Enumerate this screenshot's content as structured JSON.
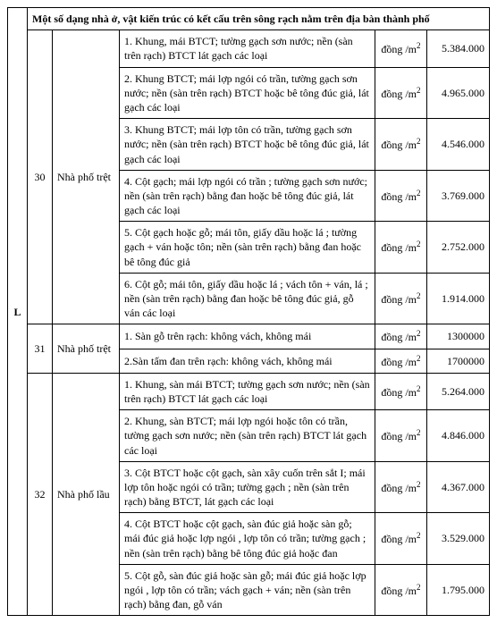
{
  "header": {
    "col_l": "L",
    "title": "Một số dạng nhà ở, vật kiến trúc có kết cấu trên sông rạch nằm trên địa bàn thành phố"
  },
  "groups": [
    {
      "stt": "30",
      "category": "Nhà phố trệt",
      "rows": [
        {
          "desc": "1. Khung, mái BTCT; tường gạch sơn nước; nền (sàn trên rạch) BTCT lát gạch các loại",
          "unit_html": "đồng /m<sup>2</sup>",
          "value": "5.384.000"
        },
        {
          "desc": "2. Khung BTCT; mái lợp ngói có trần, tường gạch sơn nước; nền (sàn trên rạch) BTCT hoặc bê tông đúc giả, lát gạch các loại",
          "unit_html": "đồng /m<sup>2</sup>",
          "value": "4.965.000"
        },
        {
          "desc": "3. Khung BTCT; mái lợp tôn có trần, tường gạch sơn nước; nền (sàn trên rạch) BTCT hoặc bê tông đúc giả, lát gạch các loại",
          "unit_html": "đồng /m<sup>2</sup>",
          "value": "4.546.000"
        },
        {
          "desc": "4. Cột gạch; mái lợp ngói có trần ; tường gạch sơn nước; nền (sàn trên rạch) bằng đan hoặc bê tông đúc giả, lát gạch các loại",
          "unit_html": "đồng /m<sup>2</sup>",
          "value": "3.769.000"
        },
        {
          "desc": "5. Cột gạch hoặc gỗ; mái tôn, giấy dầu hoặc lá ; tường gạch + ván hoặc tôn; nền (sàn trên rạch) bằng đan hoặc bê tông đúc giả",
          "unit_html": "đồng /m<sup>2</sup>",
          "value": "2.752.000"
        },
        {
          "desc": "6. Cột gỗ; mái tôn, giấy dầu hoặc lá ; vách tôn + ván, lá ; nền (sàn trên rạch) bằng đan hoặc bê tông đúc giả, gỗ ván các loại",
          "unit_html": "đồng /m<sup>2</sup>",
          "value": "1.914.000"
        }
      ]
    },
    {
      "stt": "31",
      "category": "Nhà phố trệt",
      "rows": [
        {
          "desc": "1. Sàn gỗ trên rạch: không vách, không mái",
          "unit_html": "đồng /m<sup>2</sup>",
          "value": "1300000"
        },
        {
          "desc": "2.Sàn tấm đan trên rạch: không vách, không mái",
          "unit_html": "đồng /m<sup>2</sup>",
          "value": "1700000"
        }
      ]
    },
    {
      "stt": "32",
      "category": "Nhà phố lầu",
      "rows": [
        {
          "desc": "1. Khung, sàn mái BTCT; tường gạch sơn nước; nền (sàn trên rạch) BTCT lát gạch các loại",
          "unit_html": "đồng /m<sup>2</sup>",
          "value": "5.264.000"
        },
        {
          "desc": "2. Khung, sàn  BTCT; mái lợp ngói hoặc tôn có trần, tường gạch sơn nước; nền (sàn trên rạch) BTCT lát gạch các loại",
          "unit_html": "đồng /m<sup>2</sup>",
          "value": "4.846.000"
        },
        {
          "desc": "3. Cột BTCT hoặc cột gạch, sàn xây cuốn trên sắt I; mái lợp tôn hoặc ngói có trần; tường gạch ; nền (sàn trên rạch) bằng BTCT, lát gạch các loại",
          "unit_html": "đồng /m<sup>2</sup>",
          "value": "4.367.000"
        },
        {
          "desc": "4. Cột BTCT hoặc cột gạch, sàn đúc giả hoặc sàn gỗ; mái đúc giả hoặc lợp ngói , lợp tôn có trần; tường gạch ; nền (sàn trên rạch) bằng bê tông đúc giả hoặc đan",
          "unit_html": "đồng /m<sup>2</sup>",
          "value": "3.529.000"
        },
        {
          "desc": "5. Cột gỗ, sàn đúc giả hoặc sàn gỗ; mái đúc giả hoặc lợp ngói , lợp tôn có trần; vách gạch + ván; nền (sàn trên rạch) bằng đan, gỗ ván",
          "unit_html": "đồng /m<sup>2</sup>",
          "value": "1.795.000"
        }
      ]
    }
  ]
}
